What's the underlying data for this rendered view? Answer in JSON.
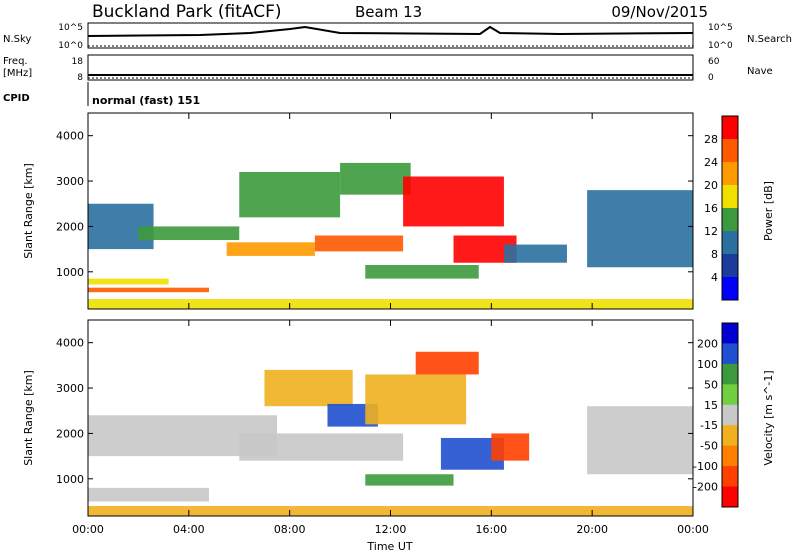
{
  "header": {
    "site": "Buckland Park (fitACF)",
    "beam": "Beam 13",
    "date": "09/Nov/2015"
  },
  "strip": {
    "nsky_label": "N.Sky",
    "nsearch_label": "N.Search",
    "nsky_ticks": [
      "10^5",
      "10^0"
    ],
    "nsearch_ticks": [
      "10^5",
      "10^0"
    ],
    "freq_label": "Freq.",
    "freq_unit": "[MHz]",
    "freq_ticks": [
      "18",
      "8"
    ],
    "nave_label": "Nave",
    "nave_ticks": [
      "60",
      "0"
    ],
    "cpid_label": "CPID",
    "cpid_value": "normal (fast) 151"
  },
  "chart_data": [
    {
      "type": "heatmap",
      "name": "power",
      "ylabel": "Slant Range [km]",
      "ylim": [
        180,
        4500
      ],
      "yticks": [
        1000,
        2000,
        3000,
        4000
      ],
      "xlim": [
        0,
        24
      ],
      "colorbar": {
        "label": "Power [dB]",
        "ticks": [
          "28",
          "24",
          "20",
          "16",
          "12",
          "8",
          "4"
        ],
        "colors": [
          "#ff0000",
          "#ff5a00",
          "#ff9a00",
          "#f0e000",
          "#3c9a3c",
          "#2a70a0",
          "#1c3c9c",
          "#0000ff"
        ]
      },
      "regions": [
        {
          "t0": 0.0,
          "t1": 2.6,
          "r0": 1500,
          "r1": 2500,
          "value": 8
        },
        {
          "t0": 0.0,
          "t1": 4.8,
          "r0": 550,
          "r1": 650,
          "value": 26
        },
        {
          "t0": 0.0,
          "t1": 3.2,
          "r0": 720,
          "r1": 850,
          "value": 16
        },
        {
          "t0": 2.0,
          "t1": 6.0,
          "r0": 1700,
          "r1": 2000,
          "value": 14
        },
        {
          "t0": 5.5,
          "t1": 9.0,
          "r0": 1350,
          "r1": 1650,
          "value": 22
        },
        {
          "t0": 6.0,
          "t1": 10.0,
          "r0": 2200,
          "r1": 3200,
          "value": 12
        },
        {
          "t0": 9.0,
          "t1": 12.5,
          "r0": 1450,
          "r1": 1800,
          "value": 24
        },
        {
          "t0": 10.0,
          "t1": 12.8,
          "r0": 2700,
          "r1": 3400,
          "value": 14
        },
        {
          "t0": 12.5,
          "t1": 16.5,
          "r0": 2000,
          "r1": 3100,
          "value": 28
        },
        {
          "t0": 14.5,
          "t1": 17.0,
          "r0": 1200,
          "r1": 1800,
          "value": 28
        },
        {
          "t0": 11.0,
          "t1": 15.5,
          "r0": 850,
          "r1": 1150,
          "value": 12
        },
        {
          "t0": 16.5,
          "t1": 19.0,
          "r0": 1200,
          "r1": 1600,
          "value": 10
        },
        {
          "t0": 19.8,
          "t1": 24.0,
          "r0": 1100,
          "r1": 2800,
          "value": 10
        },
        {
          "t0": 0.0,
          "t1": 24.0,
          "r0": 180,
          "r1": 400,
          "value": 16
        }
      ]
    },
    {
      "type": "heatmap",
      "name": "velocity",
      "ylabel": "Slant Range [km]",
      "xlabel": "Time UT",
      "ylim": [
        180,
        4500
      ],
      "yticks": [
        1000,
        2000,
        3000,
        4000
      ],
      "xlim": [
        0,
        24
      ],
      "xticks": [
        "00:00",
        "04:00",
        "08:00",
        "12:00",
        "16:00",
        "20:00",
        "00:00"
      ],
      "colorbar": {
        "label": "Velocity [m s^-1]",
        "ticks": [
          "200",
          "100",
          "50",
          "15",
          "-15",
          "-50",
          "-100",
          "-200"
        ],
        "colors": [
          "#0000d0",
          "#2050d0",
          "#3c9a3c",
          "#70d040",
          "#c8c8c8",
          "#f0b020",
          "#ff8000",
          "#ff4000",
          "#ff0000"
        ]
      },
      "regions": [
        {
          "t0": 0.0,
          "t1": 7.5,
          "r0": 1500,
          "r1": 2400,
          "value": 0
        },
        {
          "t0": 0.0,
          "t1": 4.8,
          "r0": 500,
          "r1": 800,
          "value": 0
        },
        {
          "t0": 6.0,
          "t1": 12.5,
          "r0": 1400,
          "r1": 2000,
          "value": 0
        },
        {
          "t0": 7.0,
          "t1": 10.5,
          "r0": 2600,
          "r1": 3400,
          "value": -40
        },
        {
          "t0": 9.5,
          "t1": 11.5,
          "r0": 2150,
          "r1": 2650,
          "value": 180
        },
        {
          "t0": 11.0,
          "t1": 15.0,
          "r0": 2200,
          "r1": 3300,
          "value": -30
        },
        {
          "t0": 14.0,
          "t1": 16.5,
          "r0": 1200,
          "r1": 1900,
          "value": 180
        },
        {
          "t0": 16.0,
          "t1": 17.5,
          "r0": 1400,
          "r1": 2000,
          "value": -120
        },
        {
          "t0": 13.0,
          "t1": 15.5,
          "r0": 3300,
          "r1": 3800,
          "value": -200
        },
        {
          "t0": 11.0,
          "t1": 14.5,
          "r0": 850,
          "r1": 1100,
          "value": 60
        },
        {
          "t0": 19.8,
          "t1": 24.0,
          "r0": 1100,
          "r1": 2600,
          "value": 0
        },
        {
          "t0": 0.0,
          "t1": 24.0,
          "r0": 180,
          "r1": 400,
          "value": -20
        }
      ]
    }
  ]
}
